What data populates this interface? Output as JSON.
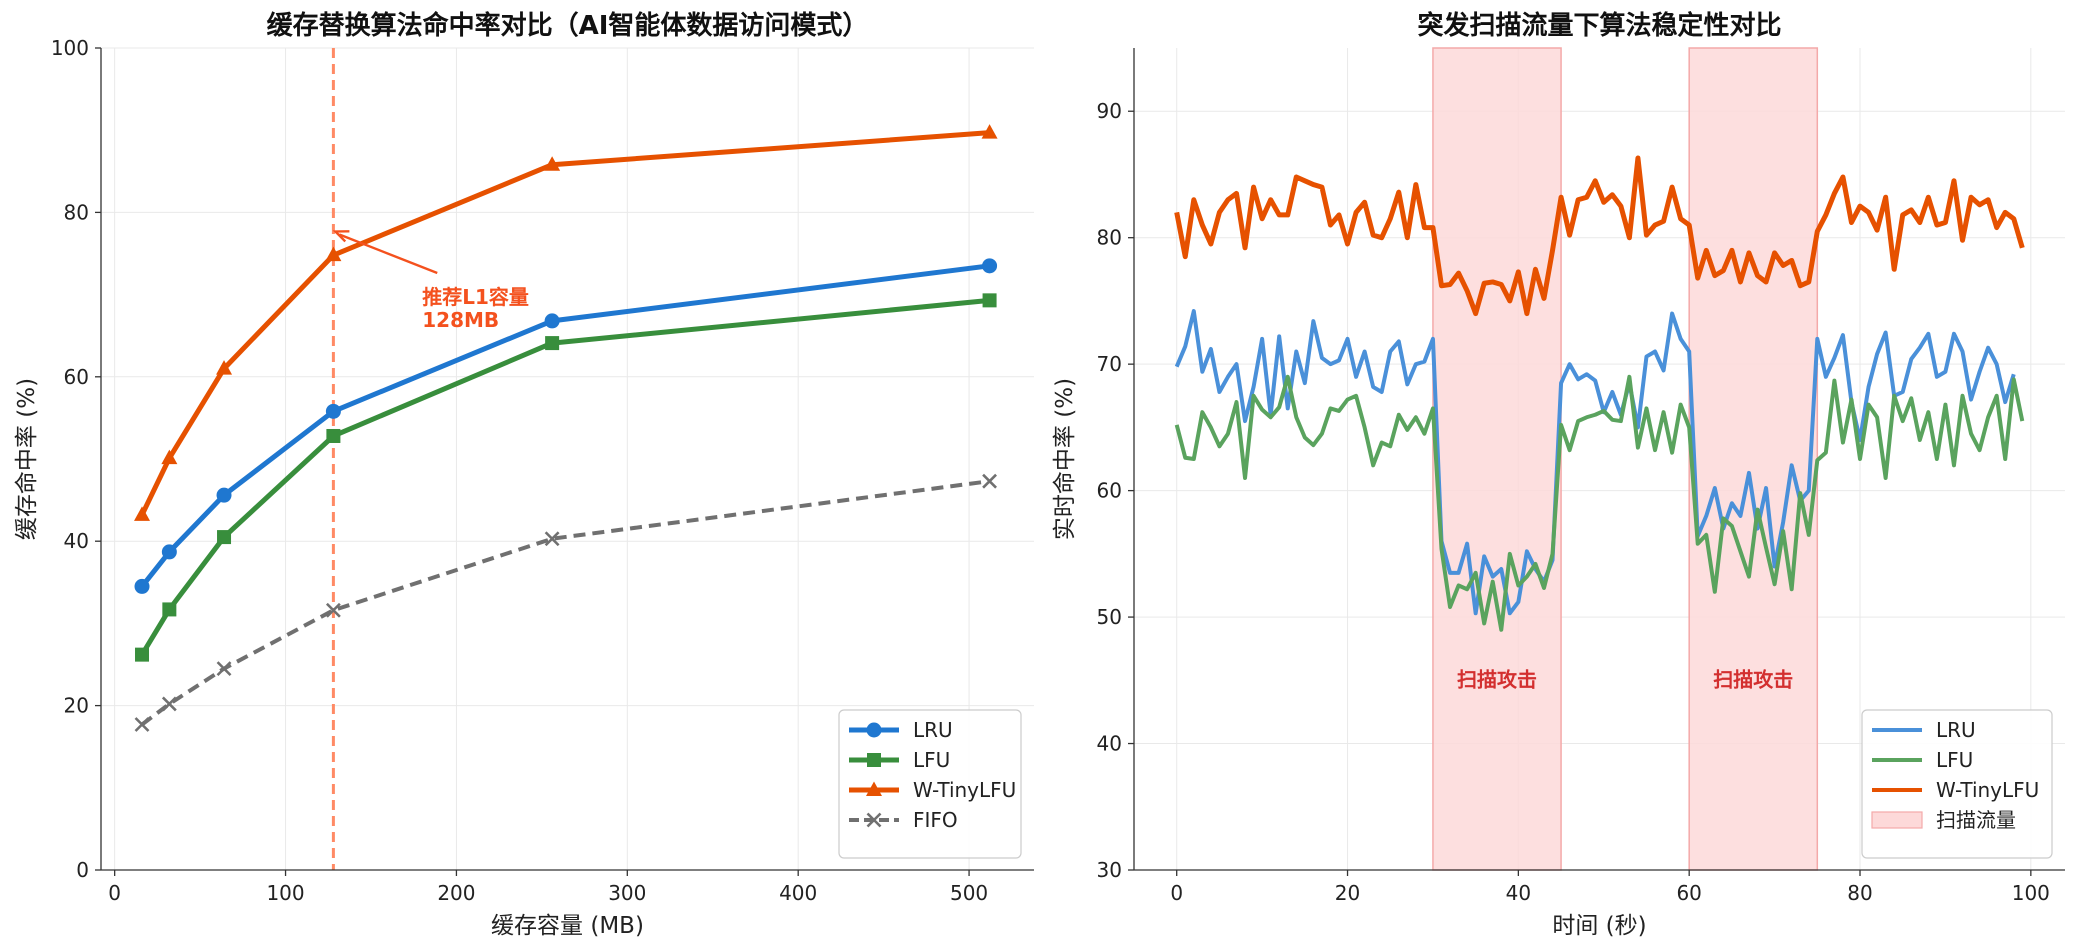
{
  "chart_data": [
    {
      "type": "line",
      "title": "缓存替换算法命中率对比（AI智能体数据访问模式）",
      "xlabel": "缓存容量 (MB)",
      "ylabel": "缓存命中率 (%)",
      "xlim": [
        -8,
        538
      ],
      "ylim": [
        0,
        100
      ],
      "xticks": [
        0,
        100,
        200,
        300,
        400,
        500
      ],
      "yticks": [
        0,
        20,
        40,
        60,
        80,
        100
      ],
      "grid": true,
      "legend": "lower-right",
      "x": [
        16,
        32,
        64,
        128,
        256,
        512
      ],
      "series": [
        {
          "name": "LRU",
          "values": [
            34.5,
            38.7,
            45.6,
            55.8,
            66.8,
            73.5
          ],
          "color": "#1f77d0",
          "marker": "circle",
          "dash": false
        },
        {
          "name": "LFU",
          "values": [
            26.2,
            31.7,
            40.5,
            52.8,
            64.1,
            69.3
          ],
          "color": "#388e3c",
          "marker": "square",
          "dash": false
        },
        {
          "name": "W-TinyLFU",
          "values": [
            43.2,
            50.1,
            61.0,
            74.8,
            85.8,
            89.7
          ],
          "color": "#e65100",
          "marker": "triangle",
          "dash": false
        },
        {
          "name": "FIFO",
          "values": [
            17.7,
            20.2,
            24.5,
            31.6,
            40.3,
            47.3
          ],
          "color": "#707070",
          "marker": "x",
          "dash": true
        }
      ],
      "reference_line": {
        "x": 128,
        "color": "#ff8a65"
      },
      "annotation": {
        "line1": "推荐L1容量",
        "line2": "128MB",
        "point_x": 128,
        "point_y": 77.8,
        "text_x": 180,
        "text_y": 68,
        "color": "#f4511e"
      }
    },
    {
      "type": "line",
      "title": "突发扫描流量下算法稳定性对比",
      "xlabel": "时间 (秒)",
      "ylabel": "实时命中率 (%)",
      "xlim": [
        -5,
        104
      ],
      "ylim": [
        30,
        95
      ],
      "xticks": [
        0,
        20,
        40,
        60,
        80,
        100
      ],
      "yticks": [
        30,
        40,
        50,
        60,
        70,
        80,
        90
      ],
      "grid": true,
      "legend": "lower-right",
      "x_start": 0,
      "x_step": 1,
      "series": [
        {
          "name": "LRU",
          "color": "#4a90d9",
          "values": [
            69.8,
            71.4,
            74.2,
            69.4,
            71.2,
            67.8,
            69.0,
            70.0,
            65.5,
            68.2,
            72.0,
            66.0,
            72.2,
            66.5,
            71.0,
            68.5,
            73.4,
            70.5,
            70.0,
            70.3,
            72.0,
            69.0,
            71.0,
            68.2,
            67.8,
            71.0,
            71.8,
            68.4,
            70.0,
            70.2,
            72.0,
            56.0,
            53.5,
            53.5,
            55.8,
            50.3,
            54.8,
            53.2,
            53.8,
            50.3,
            51.2,
            55.2,
            53.8,
            52.8,
            54.5,
            68.5,
            70.0,
            68.8,
            69.2,
            68.7,
            66.2,
            67.8,
            66.0,
            68.5,
            65.0,
            70.6,
            71.0,
            69.5,
            74.0,
            72.0,
            71.0,
            56.4,
            58.0,
            60.2,
            57.0,
            59.0,
            58.0,
            61.4,
            57.0,
            60.2,
            54.0,
            57.5,
            62.0,
            59.2,
            60.0,
            72.0,
            69.0,
            70.5,
            72.3,
            67.0,
            64.0,
            68.2,
            70.8,
            72.5,
            67.5,
            67.8,
            70.4,
            71.3,
            72.4,
            69.0,
            69.4,
            72.4,
            71.0,
            67.2,
            69.4,
            71.3,
            70.0,
            67.0,
            69.2
          ]
        },
        {
          "name": "LFU",
          "color": "#5aa35e",
          "values": [
            65.2,
            62.6,
            62.5,
            66.2,
            65.0,
            63.5,
            64.5,
            67.0,
            61.0,
            67.5,
            66.4,
            65.8,
            66.6,
            69.0,
            65.8,
            64.2,
            63.6,
            64.5,
            66.5,
            66.3,
            67.2,
            67.5,
            65.0,
            62.0,
            63.8,
            63.5,
            66.0,
            64.8,
            65.8,
            64.5,
            66.5,
            55.4,
            50.8,
            52.5,
            52.2,
            53.5,
            49.5,
            52.8,
            49.0,
            55.0,
            52.5,
            53.2,
            54.2,
            52.3,
            55.0,
            65.2,
            63.2,
            65.5,
            65.8,
            66.0,
            66.3,
            65.6,
            65.5,
            69.0,
            63.4,
            66.5,
            63.2,
            66.2,
            63.0,
            66.8,
            65.0,
            55.8,
            56.5,
            52.0,
            57.8,
            57.2,
            55.2,
            53.2,
            58.5,
            55.5,
            52.6,
            56.8,
            52.2,
            59.8,
            56.5,
            62.4,
            63.0,
            68.7,
            63.8,
            67.2,
            62.5,
            66.8,
            65.8,
            61.0,
            67.5,
            65.5,
            67.3,
            64.0,
            66.2,
            62.5,
            66.8,
            62.0,
            67.5,
            64.5,
            63.2,
            65.8,
            67.5,
            62.5,
            68.8,
            65.5
          ]
        },
        {
          "name": "W-TinyLFU",
          "color": "#e65100",
          "values": [
            82.0,
            78.5,
            83.0,
            81.0,
            79.5,
            82.0,
            83.0,
            83.5,
            79.2,
            84.0,
            81.5,
            83.0,
            81.8,
            81.8,
            84.8,
            84.5,
            84.2,
            84.0,
            81.0,
            81.8,
            79.5,
            82.0,
            82.8,
            80.2,
            80.0,
            81.5,
            83.6,
            80.0,
            84.2,
            80.8,
            80.8,
            76.2,
            76.3,
            77.2,
            75.8,
            74.0,
            76.4,
            76.5,
            76.3,
            75.0,
            77.3,
            74.0,
            77.5,
            75.2,
            79.0,
            83.2,
            80.2,
            83.0,
            83.2,
            84.5,
            82.8,
            83.4,
            82.5,
            80.0,
            86.3,
            80.2,
            81.0,
            81.3,
            84.0,
            81.5,
            81.0,
            76.8,
            79.0,
            77.0,
            77.4,
            79.0,
            76.5,
            78.8,
            77.0,
            76.5,
            78.8,
            77.8,
            78.2,
            76.2,
            76.5,
            80.5,
            81.8,
            83.5,
            84.8,
            81.2,
            82.5,
            82.0,
            80.6,
            83.2,
            77.5,
            81.8,
            82.2,
            81.2,
            83.2,
            81.0,
            81.2,
            84.5,
            79.8,
            83.2,
            82.6,
            83.0,
            80.8,
            82.0,
            81.5,
            79.2
          ]
        }
      ],
      "shaded_regions": [
        {
          "x0": 30,
          "x1": 45,
          "label": "扫描攻击",
          "label_y": 45
        },
        {
          "x0": 60,
          "x1": 75,
          "label": "扫描攻击",
          "label_y": 45
        }
      ],
      "region_legend_name": "扫描流量",
      "region_color": "#fdd9d9",
      "region_edge_color": "#f4a9a9",
      "region_label_color": "#d32f2f"
    }
  ]
}
